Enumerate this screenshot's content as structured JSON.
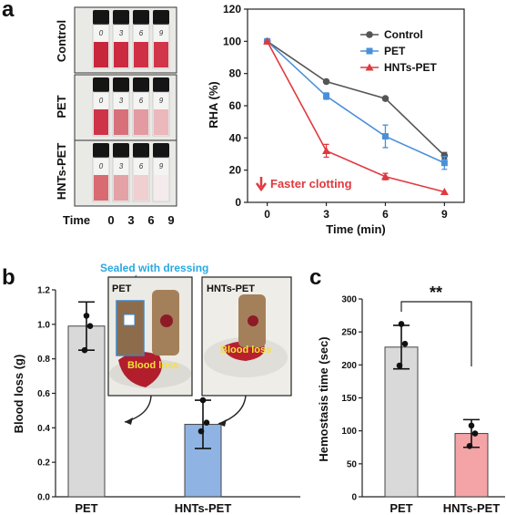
{
  "panels": {
    "a": "a",
    "b": "b",
    "c": "c"
  },
  "vials": {
    "rows": [
      "Control",
      "PET",
      "HNTs-PET"
    ],
    "cap_numbers": [
      "0",
      "3",
      "6",
      "9"
    ],
    "time_label": "Time",
    "time_values": [
      "0",
      "3",
      "6",
      "9"
    ],
    "colors": {
      "Control": [
        "#c8263a",
        "#cc2a40",
        "#d03046",
        "#d2354a"
      ],
      "PET": [
        "#cf3348",
        "#d8707a",
        "#e39aa0",
        "#ebb8bb"
      ],
      "HNTs-PET": [
        "#d96a72",
        "#e4a2a6",
        "#efcfd0",
        "#f4ecec"
      ]
    }
  },
  "photo": {
    "annotation": "Sealed with dressing",
    "pet_label": "PET",
    "hnts_label": "HNTs-PET",
    "blood_loss_label": "Blood loss"
  },
  "colors": {
    "control": "#555555",
    "pet": "#4a90d9",
    "hnts": "#e0393e",
    "arrow": "#e0393e",
    "bar_pet_b": "#d9d9d9",
    "bar_hnts_b": "#8fb4e3",
    "bar_pet_c": "#d9d9d9",
    "bar_hnts_c": "#f4a3a6",
    "annotation": "#2aa9e0"
  },
  "chart_data": [
    {
      "id": "rha",
      "type": "line",
      "ylabel": "RHA (%)",
      "xlabel": "Time (min)",
      "x": [
        0,
        3,
        6,
        9
      ],
      "xticks": [
        "0",
        "3",
        "6",
        "9"
      ],
      "xlim": [
        -1,
        10
      ],
      "ylim": [
        0,
        120
      ],
      "yticks": [
        0,
        20,
        40,
        60,
        80,
        100,
        120
      ],
      "legend": "top-right",
      "annotation": "Faster clotting",
      "series": [
        {
          "name": "Control",
          "values": [
            100,
            75,
            64.5,
            29
          ],
          "err": [
            0,
            0,
            0,
            2
          ],
          "marker": "circle",
          "color": "#555555"
        },
        {
          "name": "PET",
          "values": [
            100,
            66,
            41,
            24.5
          ],
          "err": [
            0,
            2,
            7,
            4
          ],
          "marker": "square",
          "color": "#4a90d9"
        },
        {
          "name": "HNTs-PET",
          "values": [
            100,
            32,
            16,
            6.5
          ],
          "err": [
            0,
            4,
            2,
            0
          ],
          "marker": "triangle",
          "color": "#e0393e"
        }
      ]
    },
    {
      "id": "blood_loss",
      "type": "bar",
      "ylabel": "Blood loss  (g)",
      "categories": [
        "PET",
        "HNTs-PET"
      ],
      "values": [
        0.99,
        0.42
      ],
      "err": [
        0.14,
        0.14
      ],
      "points": [
        [
          1.05,
          0.99,
          0.85
        ],
        [
          0.56,
          0.43,
          0.38
        ]
      ],
      "ylim": [
        0,
        1.2
      ],
      "yticks": [
        "0.0",
        "0.2",
        "0.4",
        "0.6",
        "0.8",
        "1.0",
        "1.2"
      ]
    },
    {
      "id": "hemostasis",
      "type": "bar",
      "ylabel": "Hemostasis time (sec)",
      "categories": [
        "PET",
        "HNTs-PET"
      ],
      "values": [
        227,
        96
      ],
      "err": [
        33,
        21
      ],
      "points": [
        [
          262,
          232,
          199
        ],
        [
          108,
          96,
          77
        ]
      ],
      "ylim": [
        0,
        300
      ],
      "yticks": [
        "0",
        "50",
        "100",
        "150",
        "200",
        "250",
        "300"
      ],
      "significance": "**"
    }
  ]
}
